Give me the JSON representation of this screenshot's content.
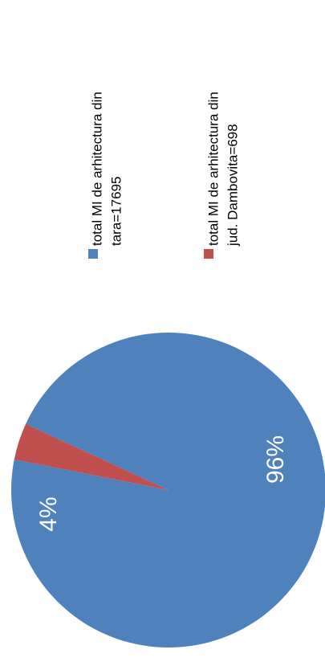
{
  "chart_data": {
    "type": "pie",
    "title": "",
    "categories": [
      "total MI de arhitectura din tara=17695",
      "total MI de arhitectura din jud. Dambovita=698"
    ],
    "values": [
      17695,
      698
    ],
    "data_labels": [
      "96%",
      "4%"
    ],
    "colors": [
      "#4f81bd",
      "#c0504d"
    ],
    "legend": {
      "placement": "right",
      "entries": [
        {
          "line1": "total MI de arhitectura din",
          "line2": "tara=17695",
          "color": "#4f81bd"
        },
        {
          "line1": "total MI de arhitectura din",
          "line2": "jud. Dambovita=698",
          "color": "#c0504d"
        }
      ]
    },
    "orientation": "rotated 90° counter-clockwise"
  }
}
